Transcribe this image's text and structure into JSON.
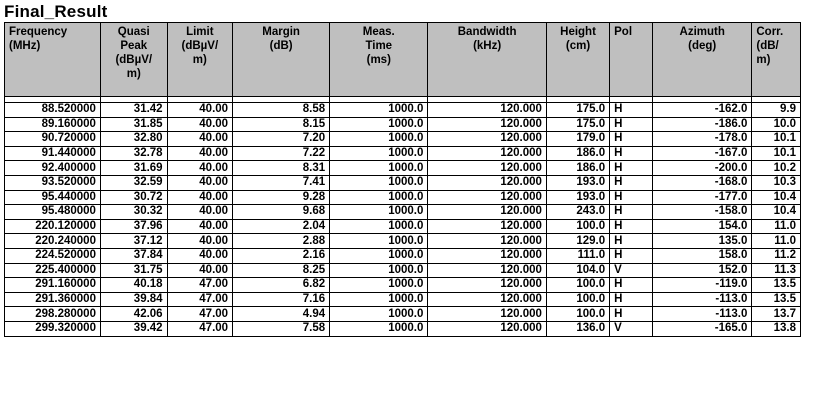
{
  "title": "Final_Result",
  "columns": [
    {
      "lines": [
        "Frequency",
        "(MHz)"
      ]
    },
    {
      "lines": [
        "Quasi",
        "Peak",
        "(dBµV/",
        "m)"
      ]
    },
    {
      "lines": [
        "Limit",
        "(dBµV/",
        "m)"
      ]
    },
    {
      "lines": [
        "Margin",
        "(dB)"
      ]
    },
    {
      "lines": [
        "Meas.",
        "Time",
        "(ms)"
      ]
    },
    {
      "lines": [
        "Bandwidth",
        "(kHz)"
      ]
    },
    {
      "lines": [
        "Height",
        "(cm)"
      ]
    },
    {
      "lines": [
        "Pol"
      ]
    },
    {
      "lines": [
        "Azimuth",
        "(deg)"
      ]
    },
    {
      "lines": [
        "Corr.",
        "(dB/",
        "m)"
      ]
    }
  ],
  "rows": [
    [
      "88.520000",
      "31.42",
      "40.00",
      "8.58",
      "1000.0",
      "120.000",
      "175.0",
      "H",
      "-162.0",
      "9.9"
    ],
    [
      "89.160000",
      "31.85",
      "40.00",
      "8.15",
      "1000.0",
      "120.000",
      "175.0",
      "H",
      "-186.0",
      "10.0"
    ],
    [
      "90.720000",
      "32.80",
      "40.00",
      "7.20",
      "1000.0",
      "120.000",
      "179.0",
      "H",
      "-178.0",
      "10.1"
    ],
    [
      "91.440000",
      "32.78",
      "40.00",
      "7.22",
      "1000.0",
      "120.000",
      "186.0",
      "H",
      "-167.0",
      "10.1"
    ],
    [
      "92.400000",
      "31.69",
      "40.00",
      "8.31",
      "1000.0",
      "120.000",
      "186.0",
      "H",
      "-200.0",
      "10.2"
    ],
    [
      "93.520000",
      "32.59",
      "40.00",
      "7.41",
      "1000.0",
      "120.000",
      "193.0",
      "H",
      "-168.0",
      "10.3"
    ],
    [
      "95.440000",
      "30.72",
      "40.00",
      "9.28",
      "1000.0",
      "120.000",
      "193.0",
      "H",
      "-177.0",
      "10.4"
    ],
    [
      "95.480000",
      "30.32",
      "40.00",
      "9.68",
      "1000.0",
      "120.000",
      "243.0",
      "H",
      "-158.0",
      "10.4"
    ],
    [
      "220.120000",
      "37.96",
      "40.00",
      "2.04",
      "1000.0",
      "120.000",
      "100.0",
      "H",
      "154.0",
      "11.0"
    ],
    [
      "220.240000",
      "37.12",
      "40.00",
      "2.88",
      "1000.0",
      "120.000",
      "129.0",
      "H",
      "135.0",
      "11.0"
    ],
    [
      "224.520000",
      "37.84",
      "40.00",
      "2.16",
      "1000.0",
      "120.000",
      "111.0",
      "H",
      "158.0",
      "11.2"
    ],
    [
      "225.400000",
      "31.75",
      "40.00",
      "8.25",
      "1000.0",
      "120.000",
      "104.0",
      "V",
      "152.0",
      "11.3"
    ],
    [
      "291.160000",
      "40.18",
      "47.00",
      "6.82",
      "1000.0",
      "120.000",
      "100.0",
      "H",
      "-119.0",
      "13.5"
    ],
    [
      "291.360000",
      "39.84",
      "47.00",
      "7.16",
      "1000.0",
      "120.000",
      "100.0",
      "H",
      "-113.0",
      "13.5"
    ],
    [
      "298.280000",
      "42.06",
      "47.00",
      "4.94",
      "1000.0",
      "120.000",
      "100.0",
      "H",
      "-113.0",
      "13.7"
    ],
    [
      "299.320000",
      "39.42",
      "47.00",
      "7.58",
      "1000.0",
      "120.000",
      "136.0",
      "V",
      "-165.0",
      "13.8"
    ]
  ],
  "colors": {
    "header_bg": "#bfbfbf",
    "border": "#000000",
    "text": "#000000"
  }
}
